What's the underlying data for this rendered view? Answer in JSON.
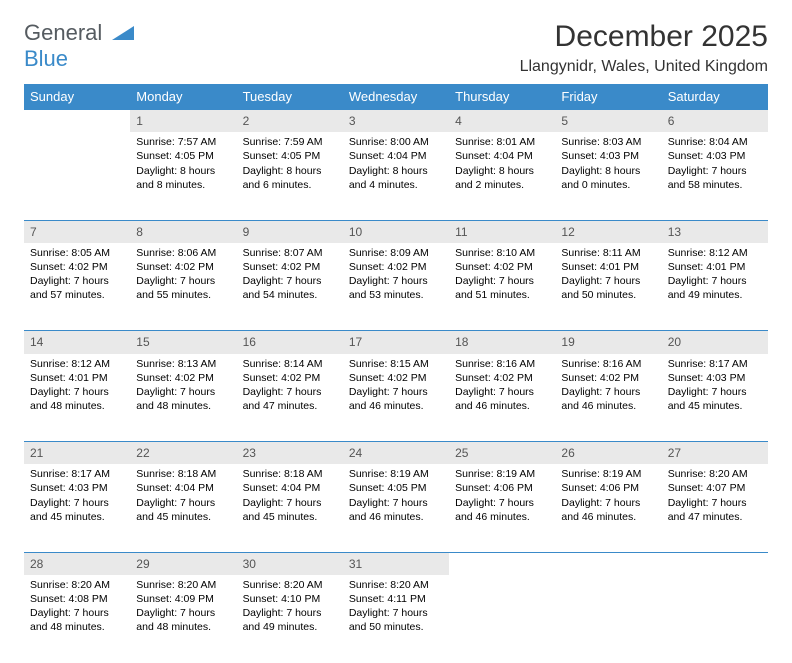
{
  "logo": {
    "line1": "General",
    "line2": "Blue"
  },
  "title": "December 2025",
  "location": "Llangynidr, Wales, United Kingdom",
  "colors": {
    "header_bg": "#3a8ac9",
    "header_text": "#ffffff",
    "daynum_bg": "#e9e9e9",
    "daynum_text": "#555555",
    "row_border": "#3a8ac9",
    "body_text": "#000000",
    "logo_gray": "#555b60",
    "logo_blue": "#3a8ac9"
  },
  "weekdays": [
    "Sunday",
    "Monday",
    "Tuesday",
    "Wednesday",
    "Thursday",
    "Friday",
    "Saturday"
  ],
  "weeks": [
    [
      null,
      {
        "n": "1",
        "sr": "7:57 AM",
        "ss": "4:05 PM",
        "d1": "8 hours",
        "d2": "and 8 minutes."
      },
      {
        "n": "2",
        "sr": "7:59 AM",
        "ss": "4:05 PM",
        "d1": "8 hours",
        "d2": "and 6 minutes."
      },
      {
        "n": "3",
        "sr": "8:00 AM",
        "ss": "4:04 PM",
        "d1": "8 hours",
        "d2": "and 4 minutes."
      },
      {
        "n": "4",
        "sr": "8:01 AM",
        "ss": "4:04 PM",
        "d1": "8 hours",
        "d2": "and 2 minutes."
      },
      {
        "n": "5",
        "sr": "8:03 AM",
        "ss": "4:03 PM",
        "d1": "8 hours",
        "d2": "and 0 minutes."
      },
      {
        "n": "6",
        "sr": "8:04 AM",
        "ss": "4:03 PM",
        "d1": "7 hours",
        "d2": "and 58 minutes."
      }
    ],
    [
      {
        "n": "7",
        "sr": "8:05 AM",
        "ss": "4:02 PM",
        "d1": "7 hours",
        "d2": "and 57 minutes."
      },
      {
        "n": "8",
        "sr": "8:06 AM",
        "ss": "4:02 PM",
        "d1": "7 hours",
        "d2": "and 55 minutes."
      },
      {
        "n": "9",
        "sr": "8:07 AM",
        "ss": "4:02 PM",
        "d1": "7 hours",
        "d2": "and 54 minutes."
      },
      {
        "n": "10",
        "sr": "8:09 AM",
        "ss": "4:02 PM",
        "d1": "7 hours",
        "d2": "and 53 minutes."
      },
      {
        "n": "11",
        "sr": "8:10 AM",
        "ss": "4:02 PM",
        "d1": "7 hours",
        "d2": "and 51 minutes."
      },
      {
        "n": "12",
        "sr": "8:11 AM",
        "ss": "4:01 PM",
        "d1": "7 hours",
        "d2": "and 50 minutes."
      },
      {
        "n": "13",
        "sr": "8:12 AM",
        "ss": "4:01 PM",
        "d1": "7 hours",
        "d2": "and 49 minutes."
      }
    ],
    [
      {
        "n": "14",
        "sr": "8:12 AM",
        "ss": "4:01 PM",
        "d1": "7 hours",
        "d2": "and 48 minutes."
      },
      {
        "n": "15",
        "sr": "8:13 AM",
        "ss": "4:02 PM",
        "d1": "7 hours",
        "d2": "and 48 minutes."
      },
      {
        "n": "16",
        "sr": "8:14 AM",
        "ss": "4:02 PM",
        "d1": "7 hours",
        "d2": "and 47 minutes."
      },
      {
        "n": "17",
        "sr": "8:15 AM",
        "ss": "4:02 PM",
        "d1": "7 hours",
        "d2": "and 46 minutes."
      },
      {
        "n": "18",
        "sr": "8:16 AM",
        "ss": "4:02 PM",
        "d1": "7 hours",
        "d2": "and 46 minutes."
      },
      {
        "n": "19",
        "sr": "8:16 AM",
        "ss": "4:02 PM",
        "d1": "7 hours",
        "d2": "and 46 minutes."
      },
      {
        "n": "20",
        "sr": "8:17 AM",
        "ss": "4:03 PM",
        "d1": "7 hours",
        "d2": "and 45 minutes."
      }
    ],
    [
      {
        "n": "21",
        "sr": "8:17 AM",
        "ss": "4:03 PM",
        "d1": "7 hours",
        "d2": "and 45 minutes."
      },
      {
        "n": "22",
        "sr": "8:18 AM",
        "ss": "4:04 PM",
        "d1": "7 hours",
        "d2": "and 45 minutes."
      },
      {
        "n": "23",
        "sr": "8:18 AM",
        "ss": "4:04 PM",
        "d1": "7 hours",
        "d2": "and 45 minutes."
      },
      {
        "n": "24",
        "sr": "8:19 AM",
        "ss": "4:05 PM",
        "d1": "7 hours",
        "d2": "and 46 minutes."
      },
      {
        "n": "25",
        "sr": "8:19 AM",
        "ss": "4:06 PM",
        "d1": "7 hours",
        "d2": "and 46 minutes."
      },
      {
        "n": "26",
        "sr": "8:19 AM",
        "ss": "4:06 PM",
        "d1": "7 hours",
        "d2": "and 46 minutes."
      },
      {
        "n": "27",
        "sr": "8:20 AM",
        "ss": "4:07 PM",
        "d1": "7 hours",
        "d2": "and 47 minutes."
      }
    ],
    [
      {
        "n": "28",
        "sr": "8:20 AM",
        "ss": "4:08 PM",
        "d1": "7 hours",
        "d2": "and 48 minutes."
      },
      {
        "n": "29",
        "sr": "8:20 AM",
        "ss": "4:09 PM",
        "d1": "7 hours",
        "d2": "and 48 minutes."
      },
      {
        "n": "30",
        "sr": "8:20 AM",
        "ss": "4:10 PM",
        "d1": "7 hours",
        "d2": "and 49 minutes."
      },
      {
        "n": "31",
        "sr": "8:20 AM",
        "ss": "4:11 PM",
        "d1": "7 hours",
        "d2": "and 50 minutes."
      },
      null,
      null,
      null
    ]
  ],
  "labels": {
    "sunrise": "Sunrise:",
    "sunset": "Sunset:",
    "daylight": "Daylight:"
  }
}
